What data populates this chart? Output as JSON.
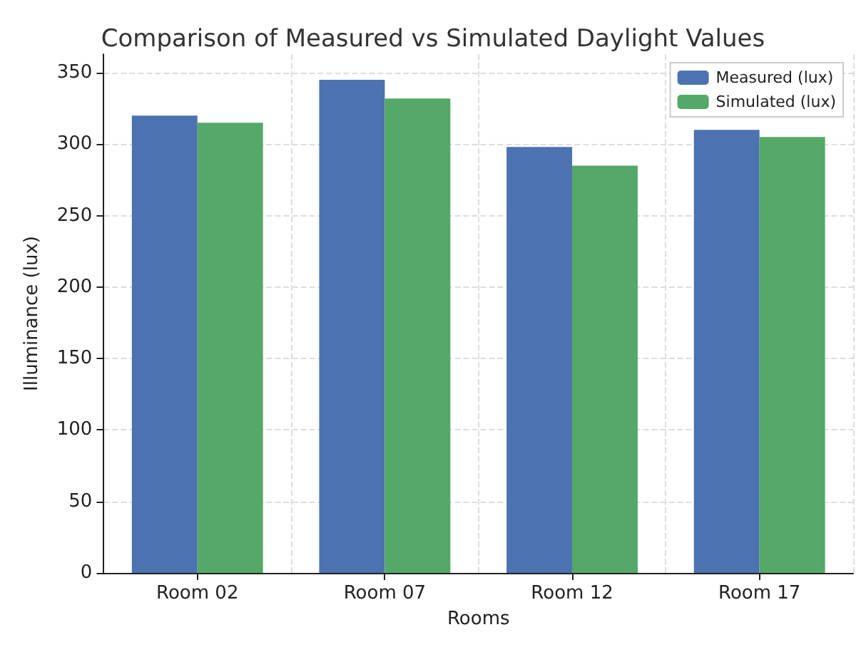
{
  "chart_data": {
    "type": "bar",
    "title": "Comparison of Measured vs Simulated Daylight Values",
    "xlabel": "Rooms",
    "ylabel": "Illuminance (lux)",
    "categories": [
      "Room 02",
      "Room 07",
      "Room 12",
      "Room 17"
    ],
    "series": [
      {
        "name": "Measured (lux)",
        "color": "#4c72b0",
        "values": [
          320,
          345,
          298,
          310
        ]
      },
      {
        "name": "Simulated (lux)",
        "color": "#55a868",
        "values": [
          315,
          332,
          285,
          305
        ]
      }
    ],
    "ylim": [
      0,
      363
    ],
    "yticks": [
      0,
      50,
      100,
      150,
      200,
      250,
      300,
      350
    ],
    "grid": true,
    "legend": "top right"
  }
}
